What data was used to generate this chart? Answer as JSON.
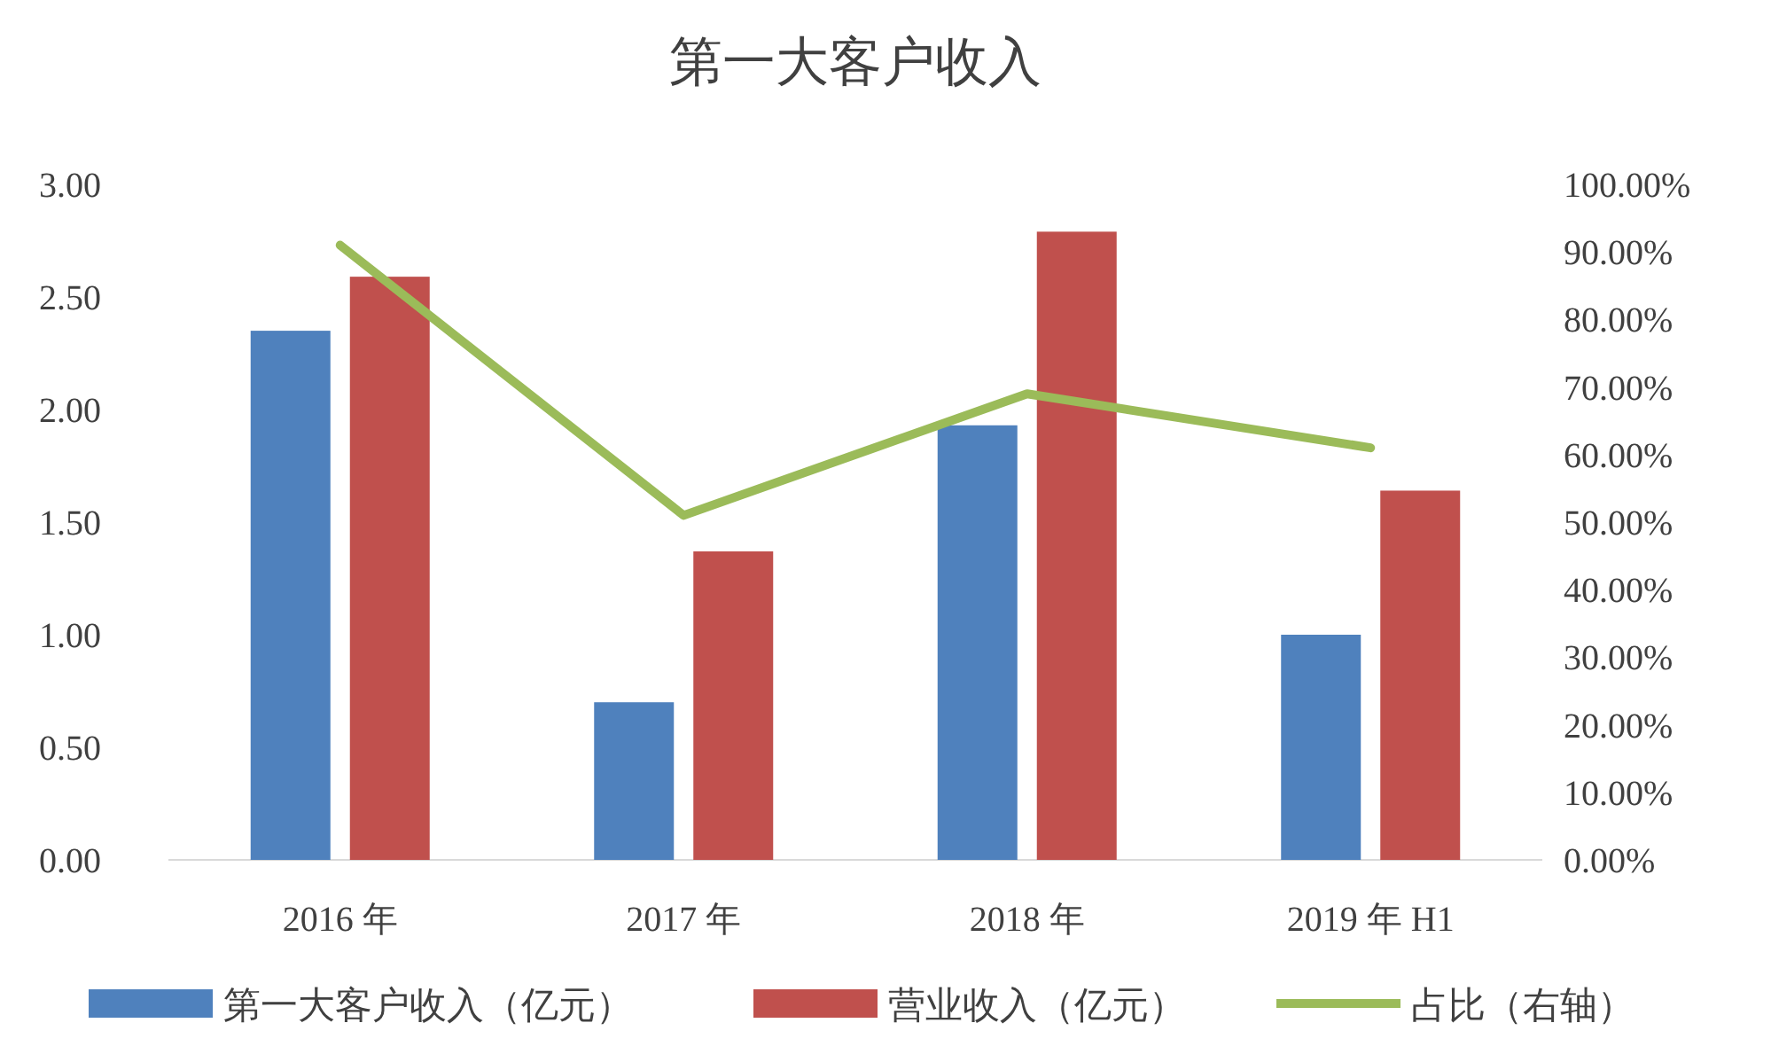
{
  "chart_data": {
    "type": "bar",
    "title": "第一大客户收入",
    "categories": [
      "2016 年",
      "2017 年",
      "2018 年",
      "2019 年 H1"
    ],
    "series": [
      {
        "name": "第一大客户收入（亿元）",
        "color": "#4f81bd",
        "values": [
          2.35,
          0.7,
          1.93,
          1.0
        ]
      },
      {
        "name": "营业收入（亿元）",
        "color": "#c0504d",
        "values": [
          2.59,
          1.37,
          2.79,
          1.64
        ]
      },
      {
        "name": "占比（右轴）",
        "color": "#9bbb59",
        "type": "line",
        "axis": "y2",
        "values": [
          91,
          51,
          69,
          61
        ]
      }
    ],
    "ylim": [
      0,
      3
    ],
    "yticks": [
      {
        "value": 0,
        "label": "0.00"
      },
      {
        "value": 0.5,
        "label": "0.50"
      },
      {
        "value": 1,
        "label": "1.00"
      },
      {
        "value": 1.5,
        "label": "1.50"
      },
      {
        "value": 2,
        "label": "2.00"
      },
      {
        "value": 2.5,
        "label": "2.50"
      },
      {
        "value": 3,
        "label": "3.00"
      }
    ],
    "y2lim": [
      0,
      100
    ],
    "y2ticks": [
      {
        "value": 0,
        "label": "0.00%"
      },
      {
        "value": 10,
        "label": "10.00%"
      },
      {
        "value": 20,
        "label": "20.00%"
      },
      {
        "value": 30,
        "label": "30.00%"
      },
      {
        "value": 40,
        "label": "40.00%"
      },
      {
        "value": 50,
        "label": "50.00%"
      },
      {
        "value": 60,
        "label": "60.00%"
      },
      {
        "value": 70,
        "label": "70.00%"
      },
      {
        "value": 80,
        "label": "80.00%"
      },
      {
        "value": 90,
        "label": "90.00%"
      },
      {
        "value": 100,
        "label": "100.00%"
      }
    ],
    "legend": "bottom"
  }
}
